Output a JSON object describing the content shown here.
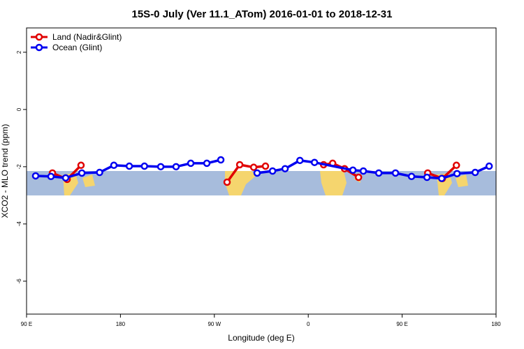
{
  "chart_data": {
    "type": "line",
    "title": "15S-0 July (Ver 11.1_ATom)   2016-01-01 to 2018-12-31",
    "xlabel": "Longitude (deg E)",
    "ylabel": "XCO2 - MLO trend (ppm)",
    "xlim": [
      90,
      540
    ],
    "ylim": [
      -7.15,
      2.85
    ],
    "xticks": [
      {
        "value": 90,
        "label": "90 E"
      },
      180,
      {
        "value": 270,
        "label": "90 W"
      },
      {
        "value": 360,
        "label": "0"
      },
      {
        "value": 450,
        "label": "90 E"
      },
      {
        "value": 540,
        "label": "180"
      }
    ],
    "yticks": [
      2,
      0,
      -2,
      -4,
      -6
    ],
    "legend": "top-left",
    "series": [
      {
        "name": "Land (Nadir&Glint)",
        "color": "#e00000",
        "x": [
          114.8,
          128.9,
          142.2,
          null,
          282.2,
          294.3,
          307.7,
          319,
          null,
          374.7,
          383.4,
          394.8,
          408.2,
          null,
          474.5,
          488.6,
          502
        ],
        "values": [
          -2.22,
          -2.44,
          -1.95,
          null,
          -2.54,
          -1.93,
          -2.02,
          -1.98,
          null,
          -1.93,
          -1.88,
          -2.07,
          -2.37,
          null,
          -2.22,
          -2.41,
          -1.95
        ]
      },
      {
        "name": "Ocean (Glint)",
        "color": "#0000f0",
        "x": [
          98.7,
          113.4,
          127.5,
          143,
          160,
          173.7,
          188.5,
          203,
          218.6,
          233.3,
          247.4,
          262.8,
          276.2,
          null,
          311,
          325.8,
          337.8,
          352,
          366,
          402.8,
          412.8,
          427.6,
          443.6,
          459,
          473.8,
          487.9,
          502.6,
          520,
          533.4
        ],
        "values": [
          -2.32,
          -2.34,
          -2.39,
          -2.22,
          -2.2,
          -1.95,
          -1.98,
          -1.98,
          -2.0,
          -2.0,
          -1.88,
          -1.88,
          -1.76,
          null,
          -2.22,
          -2.15,
          -2.07,
          -1.78,
          -1.85,
          -2.12,
          -2.15,
          -2.22,
          -2.22,
          -2.34,
          -2.37,
          -2.41,
          -2.24,
          -2.2,
          -1.98
        ]
      }
    ]
  }
}
